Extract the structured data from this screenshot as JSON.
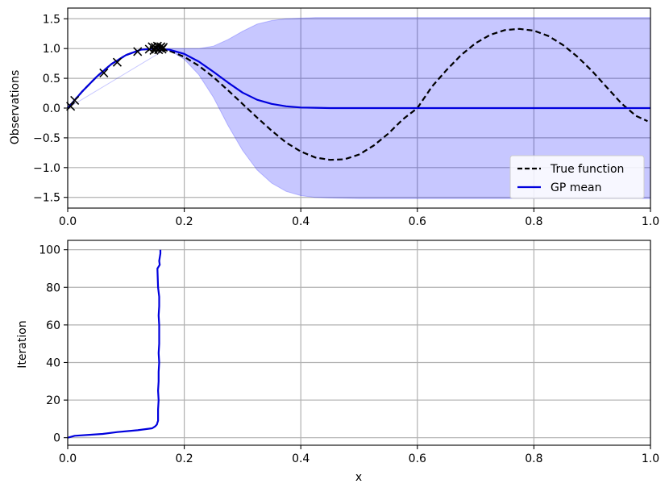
{
  "chart_data": [
    {
      "type": "line",
      "xlabel": "",
      "ylabel": "Observations",
      "xlim": [
        0.0,
        1.0
      ],
      "ylim": [
        -1.68,
        1.68
      ],
      "xticks": [
        "0.0",
        "0.2",
        "0.4",
        "0.6",
        "0.8",
        "1.0"
      ],
      "yticks": [
        "−1.5",
        "−1.0",
        "−0.5",
        "0.0",
        "0.5",
        "1.0",
        "1.5"
      ],
      "grid": true,
      "legend_position": "bottom-right",
      "series": [
        {
          "name": "True function",
          "style": "dashed",
          "color": "#000000",
          "x": [
            0.0,
            0.025,
            0.05,
            0.075,
            0.1,
            0.125,
            0.15,
            0.175,
            0.2,
            0.225,
            0.25,
            0.275,
            0.3,
            0.325,
            0.35,
            0.375,
            0.4,
            0.425,
            0.45,
            0.475,
            0.5,
            0.525,
            0.55,
            0.575,
            0.6,
            0.625,
            0.65,
            0.675,
            0.7,
            0.725,
            0.75,
            0.775,
            0.8,
            0.825,
            0.85,
            0.875,
            0.9,
            0.925,
            0.95,
            0.975,
            0.995
          ],
          "y": [
            0.0,
            0.28,
            0.53,
            0.74,
            0.89,
            0.98,
            1.0,
            0.96,
            0.86,
            0.71,
            0.52,
            0.3,
            0.07,
            -0.16,
            -0.38,
            -0.58,
            -0.73,
            -0.83,
            -0.87,
            -0.86,
            -0.78,
            -0.63,
            -0.43,
            -0.19,
            0.0,
            0.36,
            0.64,
            0.89,
            1.09,
            1.23,
            1.31,
            1.33,
            1.3,
            1.21,
            1.06,
            0.86,
            0.62,
            0.35,
            0.08,
            -0.13,
            -0.22
          ]
        },
        {
          "name": "GP mean",
          "style": "solid",
          "color": "#0000dd",
          "x": [
            0.0,
            0.025,
            0.05,
            0.075,
            0.1,
            0.125,
            0.15,
            0.175,
            0.2,
            0.225,
            0.25,
            0.275,
            0.3,
            0.325,
            0.35,
            0.375,
            0.4,
            0.425,
            0.45,
            0.5,
            0.6,
            0.8,
            1.0
          ],
          "y": [
            0.0,
            0.28,
            0.53,
            0.74,
            0.89,
            0.98,
            1.0,
            0.98,
            0.91,
            0.78,
            0.61,
            0.43,
            0.26,
            0.14,
            0.07,
            0.03,
            0.01,
            0.005,
            0.0,
            0.0,
            0.0,
            0.0,
            0.0
          ]
        }
      ],
      "confidence_band": {
        "color": "#9999ff",
        "x": [
          0.0,
          0.17,
          0.2,
          0.225,
          0.25,
          0.275,
          0.3,
          0.325,
          0.35,
          0.375,
          0.4,
          0.425,
          0.45,
          0.5,
          0.6,
          0.8,
          1.0
        ],
        "upper": [
          0.0,
          1.0,
          1.0,
          1.0,
          1.04,
          1.15,
          1.29,
          1.41,
          1.47,
          1.5,
          1.51,
          1.52,
          1.52,
          1.52,
          1.52,
          1.52,
          1.52
        ],
        "lower": [
          0.0,
          1.0,
          0.82,
          0.56,
          0.18,
          -0.29,
          -0.71,
          -1.04,
          -1.26,
          -1.4,
          -1.47,
          -1.5,
          -1.51,
          -1.52,
          -1.52,
          -1.52,
          -1.52
        ]
      },
      "observations": {
        "marker": "x",
        "color": "#000000",
        "x": [
          0.005,
          0.012,
          0.062,
          0.085,
          0.12,
          0.14,
          0.145,
          0.148,
          0.15,
          0.152,
          0.154,
          0.156,
          0.158,
          0.16,
          0.162,
          0.164
        ],
        "y": [
          0.03,
          0.13,
          0.59,
          0.77,
          0.95,
          0.99,
          1.03,
          0.97,
          1.02,
          1.0,
          1.04,
          0.98,
          1.01,
          1.03,
          0.99,
          1.02
        ]
      }
    },
    {
      "type": "line",
      "xlabel": "x",
      "ylabel": "Iteration",
      "xlim": [
        0.0,
        1.0
      ],
      "ylim": [
        -4,
        105
      ],
      "xticks": [
        "0.0",
        "0.2",
        "0.4",
        "0.6",
        "0.8",
        "1.0"
      ],
      "yticks": [
        "0",
        "20",
        "40",
        "60",
        "80",
        "100"
      ],
      "grid": true,
      "series": [
        {
          "color": "#0000dd",
          "x": [
            0.0,
            0.012,
            0.06,
            0.085,
            0.12,
            0.145,
            0.15,
            0.153,
            0.154,
            0.155,
            0.155,
            0.156,
            0.155,
            0.156,
            0.156,
            0.157,
            0.156,
            0.157,
            0.157,
            0.157,
            0.156,
            0.157,
            0.157,
            0.155,
            0.154,
            0.158,
            0.157,
            0.159,
            0.159
          ],
          "y": [
            0,
            1,
            2,
            3,
            4,
            5,
            6,
            7,
            8,
            9,
            15,
            20,
            25,
            30,
            35,
            40,
            45,
            50,
            55,
            60,
            65,
            70,
            75,
            80,
            90,
            92,
            94,
            98,
            100
          ]
        }
      ]
    }
  ]
}
